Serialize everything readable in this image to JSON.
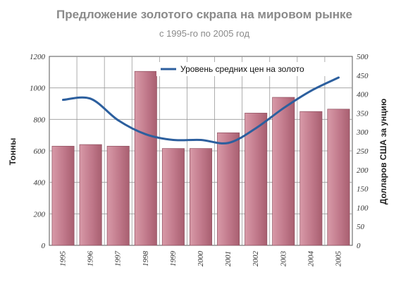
{
  "chart_data": {
    "type": "bar",
    "title": "Предложение золотого скрапа на мировом рынке",
    "subtitle": "с 1995-го по 2005 год",
    "categories": [
      "1995",
      "1996",
      "1997",
      "1998",
      "1999",
      "2000",
      "2001",
      "2002",
      "2003",
      "2004",
      "2005"
    ],
    "series": [
      {
        "type": "bar",
        "axis": "left",
        "values": [
          630,
          640,
          630,
          1105,
          615,
          615,
          715,
          840,
          940,
          850,
          865
        ],
        "color": "#c0788a"
      },
      {
        "type": "line",
        "axis": "right",
        "name": "Уровень средних цен на золото",
        "values": [
          385,
          388,
          331,
          294,
          279,
          279,
          271,
          310,
          363,
          409,
          444
        ],
        "color": "#2c5f9e"
      }
    ],
    "ylabel": "Тонны",
    "ylabel_right": "Долларов США за унцию",
    "ylim": [
      0,
      1200
    ],
    "ylim_right": [
      0,
      500
    ],
    "yticks": [
      "0",
      "200",
      "400",
      "600",
      "800",
      "1000",
      "1200"
    ],
    "yticks_right": [
      "0",
      "50",
      "100",
      "150",
      "200",
      "250",
      "300",
      "350",
      "400",
      "450",
      "500"
    ],
    "grid": true,
    "legend_position": "top-right"
  }
}
